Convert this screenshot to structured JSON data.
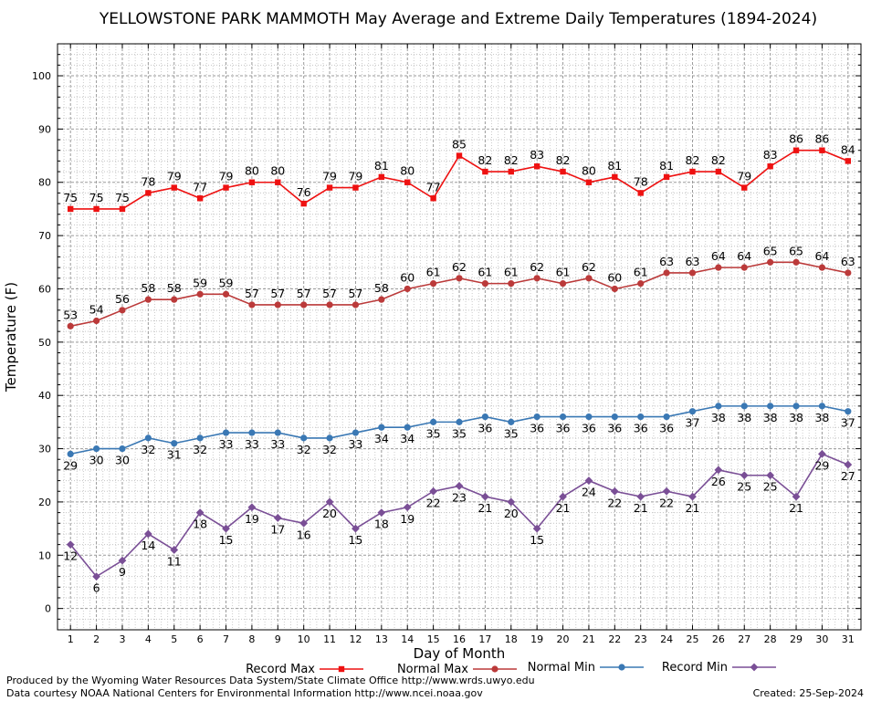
{
  "chart_data": {
    "type": "line",
    "title": "YELLOWSTONE PARK MAMMOTH May Average and Extreme Daily Temperatures (1894-2024)",
    "xlabel": "Day of Month",
    "ylabel": "Temperature (F)",
    "xlim": [
      0.5,
      31.5
    ],
    "ylim": [
      -4,
      106
    ],
    "yticks": [
      0,
      10,
      20,
      30,
      40,
      50,
      60,
      70,
      80,
      90,
      100
    ],
    "x": [
      1,
      2,
      3,
      4,
      5,
      6,
      7,
      8,
      9,
      10,
      11,
      12,
      13,
      14,
      15,
      16,
      17,
      18,
      19,
      20,
      21,
      22,
      23,
      24,
      25,
      26,
      27,
      28,
      29,
      30,
      31
    ],
    "grid": true,
    "legend_position": "bottom",
    "series": [
      {
        "name": "Record Max",
        "color": "#ee1111",
        "marker": "square",
        "label_pos": "above",
        "values": [
          75,
          75,
          75,
          78,
          79,
          77,
          79,
          80,
          80,
          76,
          79,
          79,
          81,
          80,
          77,
          85,
          82,
          82,
          83,
          82,
          80,
          81,
          78,
          81,
          82,
          82,
          79,
          83,
          86,
          86,
          84
        ]
      },
      {
        "name": "Normal Max",
        "color": "#bb3a3a",
        "marker": "circle",
        "label_pos": "above",
        "values": [
          53,
          54,
          56,
          58,
          58,
          59,
          59,
          57,
          57,
          57,
          57,
          57,
          58,
          60,
          61,
          62,
          61,
          61,
          62,
          61,
          62,
          60,
          61,
          63,
          63,
          64,
          64,
          65,
          65,
          64,
          63
        ]
      },
      {
        "name": "Normal Min",
        "color": "#3a78b4",
        "marker": "circle",
        "label_pos": "below",
        "values": [
          29,
          30,
          30,
          32,
          31,
          32,
          33,
          33,
          33,
          32,
          32,
          33,
          34,
          34,
          35,
          35,
          36,
          35,
          36,
          36,
          36,
          36,
          36,
          36,
          37,
          38,
          38,
          38,
          38,
          38,
          37
        ]
      },
      {
        "name": "Record Min",
        "color": "#7a4f96",
        "marker": "diamond",
        "label_pos": "below",
        "values": [
          12,
          6,
          9,
          14,
          11,
          18,
          15,
          19,
          17,
          16,
          20,
          15,
          18,
          19,
          22,
          23,
          21,
          20,
          15,
          21,
          24,
          22,
          21,
          22,
          21,
          26,
          25,
          25,
          21,
          29,
          27
        ]
      }
    ]
  },
  "footer": {
    "produced_by": "Produced by the Wyoming Water Resources Data System/State Climate Office http://www.wrds.uwyo.edu",
    "courtesy": "Data courtesy NOAA National Centers for Environmental Information http://www.ncei.noaa.gov",
    "created": "Created:  25-Sep-2024"
  }
}
